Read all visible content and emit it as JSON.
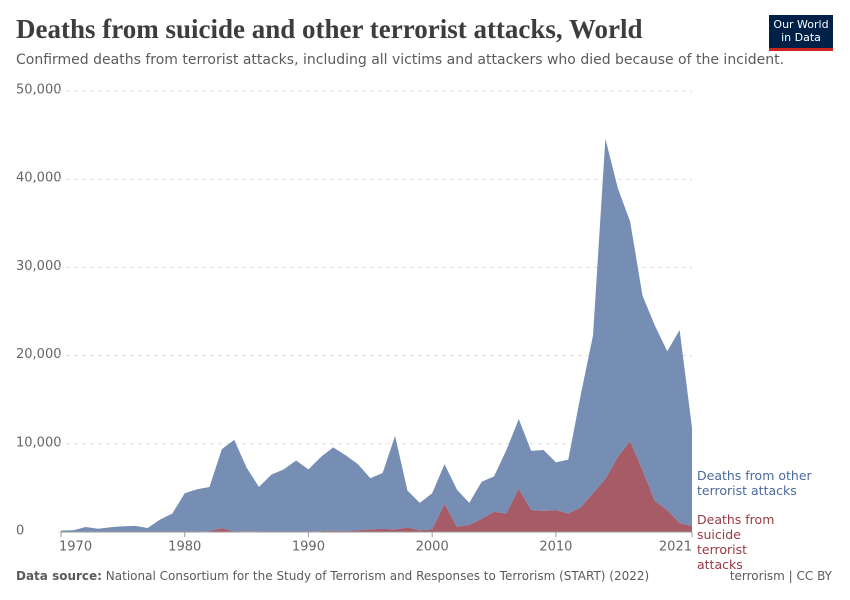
{
  "chart_data": {
    "type": "stacked-area",
    "title": "Deaths from suicide and other terrorist attacks, World",
    "subtitle": "Confirmed deaths from terrorist attacks, including all victims and attackers who died because of the incident.",
    "logo": "Our World in Data",
    "data_source_label": "Data source:",
    "data_source": "National Consortium for the Study of Terrorism and Responses to Terrorism (START) (2022)",
    "license": "terrorism | CC BY",
    "x": [
      1970,
      1971,
      1972,
      1973,
      1974,
      1975,
      1976,
      1977,
      1978,
      1979,
      1980,
      1981,
      1982,
      1983,
      1984,
      1985,
      1986,
      1987,
      1988,
      1989,
      1990,
      1991,
      1992,
      1993,
      1994,
      1995,
      1996,
      1997,
      1998,
      1999,
      2000,
      2001,
      2002,
      2003,
      2004,
      2005,
      2006,
      2007,
      2008,
      2009,
      2010,
      2011,
      2012,
      2013,
      2014,
      2015,
      2016,
      2017,
      2018,
      2019,
      2020,
      2021
    ],
    "series": [
      {
        "name": "Deaths from suicide terrorist attacks",
        "color": "#a2525f",
        "label_color": "#9a3942",
        "values": [
          0,
          0,
          0,
          0,
          0,
          0,
          0,
          0,
          0,
          0,
          0,
          50,
          100,
          450,
          50,
          100,
          50,
          30,
          30,
          50,
          50,
          100,
          150,
          100,
          200,
          300,
          350,
          300,
          500,
          200,
          300,
          3200,
          600,
          800,
          1500,
          2300,
          2100,
          4900,
          2500,
          2400,
          2500,
          2100,
          2800,
          4400,
          6000,
          8500,
          10300,
          7000,
          3500,
          2500,
          1000,
          700
        ]
      },
      {
        "name": "Deaths from other terrorist attacks",
        "color": "#6f88b0",
        "label_color": "#4c6a9c",
        "values": [
          170,
          200,
          560,
          370,
          540,
          650,
          700,
          450,
          1400,
          2100,
          4400,
          4800,
          5000,
          8950,
          10400,
          7200,
          5050,
          6470,
          7070,
          8050,
          7050,
          8400,
          9450,
          8600,
          7500,
          5800,
          6350,
          10600,
          4200,
          3100,
          4100,
          4500,
          4200,
          2500,
          4200,
          4000,
          7200,
          7900,
          6700,
          6900,
          5400,
          6100,
          12700,
          17900,
          38600,
          30500,
          24900,
          19800,
          19900,
          18000,
          21900,
          11100
        ]
      }
    ],
    "xlim": [
      1970,
      2021
    ],
    "xticks": [
      1970,
      1980,
      1990,
      2000,
      2010,
      2021
    ],
    "ylim": [
      0,
      50000
    ],
    "yticks": [
      0,
      {
        "value": 10000,
        "label": "10,000"
      },
      {
        "value": 20000,
        "label": "20,000"
      },
      {
        "value": 30000,
        "label": "30,000"
      },
      {
        "value": 40000,
        "label": "40,000"
      },
      {
        "value": 50000,
        "label": "50,000"
      }
    ],
    "grid": true
  }
}
